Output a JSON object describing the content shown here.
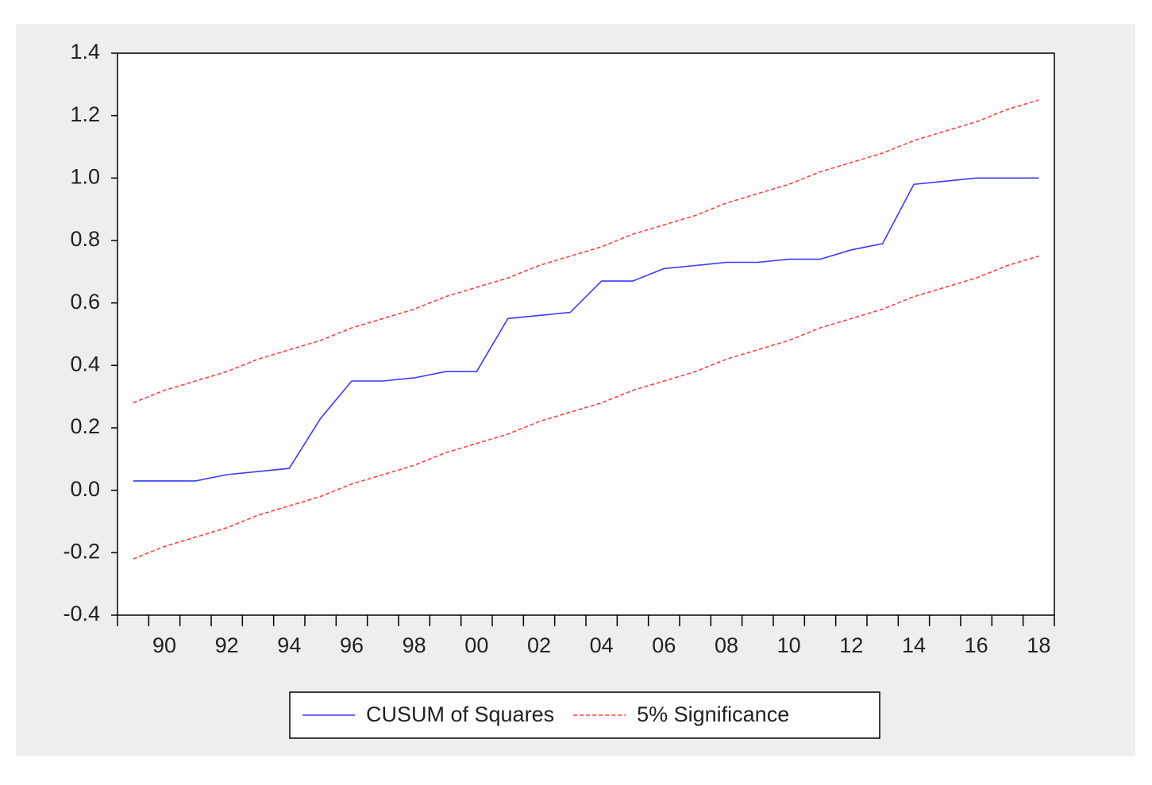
{
  "chart_data": {
    "type": "line",
    "categories": [
      null,
      "90",
      null,
      "92",
      null,
      "94",
      null,
      "96",
      null,
      "98",
      null,
      "00",
      null,
      "02",
      null,
      "04",
      null,
      "06",
      null,
      "08",
      null,
      "10",
      null,
      "12",
      null,
      "14",
      null,
      "16",
      null,
      "18"
    ],
    "series": [
      {
        "name": "CUSUM of Squares",
        "color": "#3a3aff",
        "dash": false,
        "values": [
          0.03,
          0.03,
          0.03,
          0.05,
          0.06,
          0.07,
          0.23,
          0.35,
          0.35,
          0.36,
          0.38,
          0.38,
          0.55,
          0.56,
          0.57,
          0.67,
          0.67,
          0.71,
          0.72,
          0.73,
          0.73,
          0.74,
          0.74,
          0.77,
          0.79,
          0.98,
          0.99,
          1.0,
          1.0,
          1.0
        ]
      },
      {
        "name": "5% Significance",
        "color": "#ff4040",
        "dash": true,
        "values": [
          0.28,
          0.32,
          0.35,
          0.38,
          0.42,
          0.45,
          0.48,
          0.52,
          0.55,
          0.58,
          0.62,
          0.65,
          0.68,
          0.72,
          0.75,
          0.78,
          0.82,
          0.85,
          0.88,
          0.92,
          0.95,
          0.98,
          1.02,
          1.05,
          1.08,
          1.12,
          1.15,
          1.18,
          1.22,
          1.25
        ]
      },
      {
        "color": "#ff4040",
        "dash": true,
        "values": [
          -0.22,
          -0.18,
          -0.15,
          -0.12,
          -0.08,
          -0.05,
          -0.02,
          0.02,
          0.05,
          0.08,
          0.12,
          0.15,
          0.18,
          0.22,
          0.25,
          0.28,
          0.32,
          0.35,
          0.38,
          0.42,
          0.45,
          0.48,
          0.52,
          0.55,
          0.58,
          0.62,
          0.65,
          0.68,
          0.72,
          0.75
        ]
      }
    ],
    "ylim": [
      -0.4,
      1.4
    ],
    "yticks": [
      -0.4,
      -0.2,
      {
        "value": 0,
        "label": "0.0"
      },
      0.2,
      0.4,
      0.6,
      0.8,
      {
        "value": 1,
        "label": "1.0"
      },
      1.2,
      1.4
    ],
    "grid": false,
    "legend": "bottom"
  }
}
